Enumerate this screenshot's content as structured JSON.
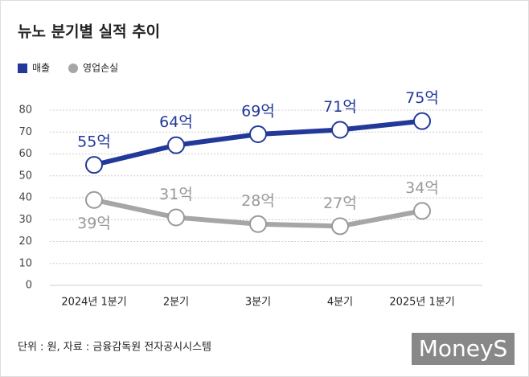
{
  "chart_data": {
    "type": "line",
    "title": "뉴노 분기별 실적 추이",
    "categories": [
      "2024년 1분기",
      "2분기",
      "3분기",
      "4분기",
      "2025년 1분기"
    ],
    "series": [
      {
        "name": "매출",
        "color": "#22399a",
        "values": [
          55,
          64,
          69,
          71,
          75
        ],
        "value_labels": [
          "55억",
          "64억",
          "69억",
          "71억",
          "75억"
        ]
      },
      {
        "name": "영업손실",
        "color": "#a6a6a6",
        "values": [
          39,
          31,
          28,
          27,
          34
        ],
        "value_labels": [
          "39억",
          "31억",
          "28억",
          "27억",
          "34억"
        ]
      }
    ],
    "ylim": [
      0,
      80
    ],
    "yticks": [
      0,
      10,
      20,
      30,
      40,
      50,
      60,
      70,
      80
    ],
    "grid": true,
    "source": "단위 : 원, 자료 : 금융감독원 전자공시시스템",
    "watermark": "MoneyS"
  }
}
